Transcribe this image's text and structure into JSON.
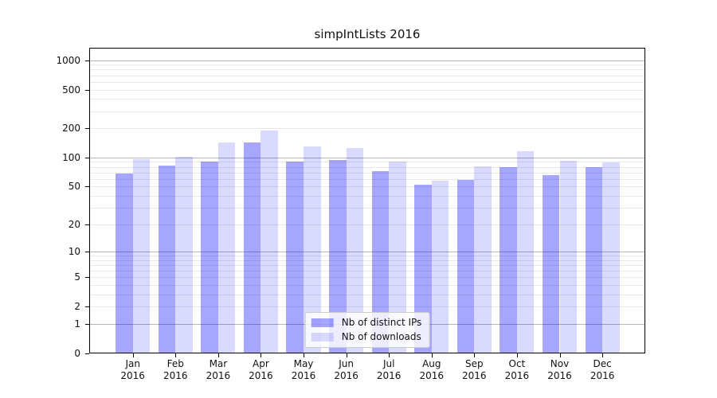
{
  "chart_data": {
    "type": "bar",
    "title": "simpIntLists 2016",
    "categories": [
      "Jan",
      "Feb",
      "Mar",
      "Apr",
      "May",
      "Jun",
      "Jul",
      "Aug",
      "Sep",
      "Oct",
      "Nov",
      "Dec"
    ],
    "category_year": "2016",
    "series": [
      {
        "name": "Nb of distinct IPs",
        "color": "rgba(0,0,250,0.35)",
        "solid_color": "#a6a6fa",
        "values": [
          68,
          82,
          90,
          143,
          91,
          94,
          73,
          52,
          59,
          79,
          66,
          80
        ]
      },
      {
        "name": "Nb of downloads",
        "color": "rgba(0,0,250,0.145)",
        "solid_color": "#dcdcfc",
        "values": [
          97,
          101,
          144,
          190,
          130,
          125,
          90,
          58,
          81,
          116,
          92,
          89
        ]
      }
    ],
    "y_ticks": [
      0,
      1,
      2,
      5,
      10,
      20,
      50,
      100,
      200,
      500,
      1000
    ],
    "yscale": "log10(value+1)",
    "ylim": [
      0,
      1340
    ],
    "xlabel": "",
    "ylabel": "",
    "grid": true,
    "legend_position": "lower center",
    "colors": {
      "major_grid": "#b5b5b5",
      "minor_grid": "#e7e7e7",
      "axis": "#000000",
      "text": "#111111"
    }
  }
}
